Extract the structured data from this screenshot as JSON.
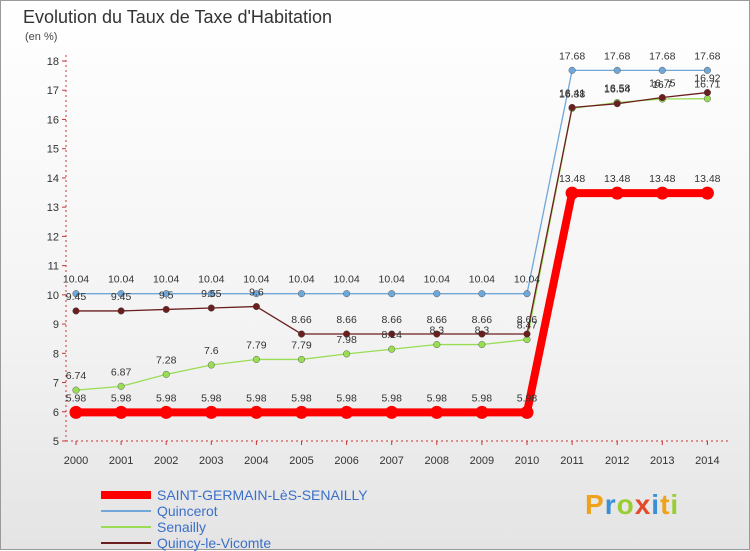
{
  "header": {
    "title": "Evolution du Taux de Taxe d'Habitation",
    "unit": "(en %)"
  },
  "logo": {
    "letters": [
      {
        "ch": "P",
        "color": "#f0a21a"
      },
      {
        "ch": "r",
        "color": "#3b8fd6"
      },
      {
        "ch": "o",
        "color": "#9acd32"
      },
      {
        "ch": "x",
        "color": "#e24a2a"
      },
      {
        "ch": "i",
        "color": "#3b8fd6"
      },
      {
        "ch": "t",
        "color": "#f0a21a"
      },
      {
        "ch": "i",
        "color": "#9acd32"
      }
    ]
  },
  "chart_data": {
    "type": "line",
    "title": "Evolution du Taux de Taxe d'Habitation",
    "ylabel": "(en %)",
    "x": [
      "2000",
      "2001",
      "2002",
      "2003",
      "2004",
      "2005",
      "2006",
      "2007",
      "2008",
      "2009",
      "2010",
      "2011",
      "2012",
      "2013",
      "2014"
    ],
    "ylim": [
      5,
      18
    ],
    "yticks": [
      5,
      6,
      7,
      8,
      9,
      10,
      11,
      12,
      13,
      14,
      15,
      16,
      17,
      18
    ],
    "grid": false,
    "legend_position": "bottom",
    "series": [
      {
        "name": "SAINT-GERMAIN-LèS-SENAILLY",
        "color": "#ff0000",
        "width": 8,
        "values": [
          5.98,
          5.98,
          5.98,
          5.98,
          5.98,
          5.98,
          5.98,
          5.98,
          5.98,
          5.98,
          5.98,
          13.48,
          13.48,
          13.48,
          13.48
        ],
        "labels": [
          "5.98",
          "5.98",
          "5.98",
          "5.98",
          "5.98",
          "5.98",
          "5.98",
          "5.98",
          "5.98",
          "5.98",
          "5.98",
          "13.48",
          "13.48",
          "13.48",
          "13.48"
        ]
      },
      {
        "name": "Quincerot",
        "color": "#6fa7d8",
        "width": 1.3,
        "values": [
          10.04,
          10.04,
          10.04,
          10.04,
          10.04,
          10.04,
          10.04,
          10.04,
          10.04,
          10.04,
          10.04,
          17.68,
          17.68,
          17.68,
          17.68
        ],
        "labels": [
          "10.04",
          "10.04",
          "10.04",
          "10.04",
          "10.04",
          "10.04",
          "10.04",
          "10.04",
          "10.04",
          "10.04",
          "10.04",
          "17.68",
          "17.68",
          "17.68",
          "17.68"
        ]
      },
      {
        "name": "Senailly",
        "color": "#99dd55",
        "width": 1.3,
        "values": [
          6.74,
          6.87,
          7.28,
          7.6,
          7.79,
          7.79,
          7.98,
          8.14,
          8.3,
          8.3,
          8.47,
          16.38,
          16.58,
          16.7,
          16.71
        ],
        "labels": [
          "6.74",
          "6.87",
          "7.28",
          "7.6",
          "7.79",
          "7.79",
          "7.98",
          "8.14",
          "8.3",
          "8.3",
          "8.47",
          "16.38",
          "16.58",
          "16.7",
          "16.71"
        ]
      },
      {
        "name": "Quincy-le-Vicomte",
        "color": "#6b1e1e",
        "width": 1.3,
        "values": [
          9.45,
          9.45,
          9.5,
          9.55,
          9.6,
          8.66,
          8.66,
          8.66,
          8.66,
          8.66,
          8.66,
          16.41,
          16.54,
          16.75,
          16.92
        ],
        "labels": [
          "9.45",
          "9.45",
          "9.5",
          "9.55",
          "9.6",
          "8.66",
          "8.66",
          "8.66",
          "8.66",
          "8.66",
          "8.66",
          "16.41",
          "16.54",
          "16.75",
          "16.92"
        ]
      }
    ]
  }
}
